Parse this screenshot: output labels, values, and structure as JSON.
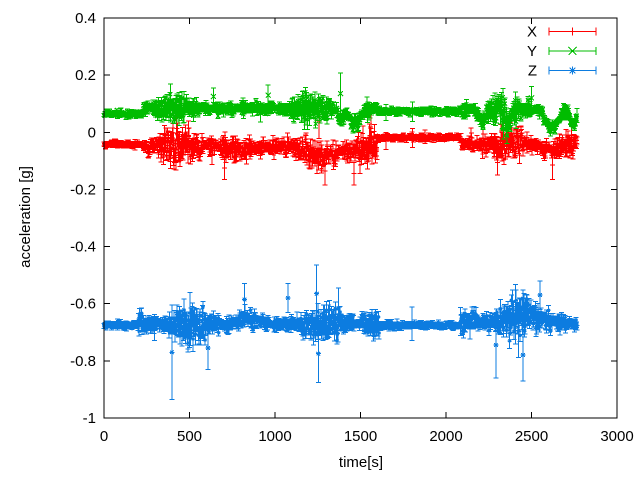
{
  "chart_data": {
    "type": "scatter",
    "style": "errorbars-with-points",
    "title": "",
    "xlabel": "time[s]",
    "ylabel": "acceleration [g]",
    "xlim": [
      0,
      3000
    ],
    "ylim": [
      -1,
      0.4
    ],
    "xticks": [
      0,
      500,
      1000,
      1500,
      2000,
      2500,
      3000
    ],
    "xtick_labels": [
      "0",
      "500",
      "1000",
      "1500",
      "2000",
      "2500",
      "3000"
    ],
    "yticks": [
      0.4,
      0.2,
      0,
      -0.2,
      -0.4,
      -0.6,
      -0.8,
      -1
    ],
    "ytick_labels": [
      "0.4",
      "0.2",
      "0",
      "-0.2",
      "-0.4",
      "-0.6",
      "-0.8",
      "-1"
    ],
    "grid": false,
    "background_color": "#ffffff",
    "axis_color": "#000000",
    "legend": {
      "position": "top-right-inside",
      "border": false,
      "entries": [
        "X",
        "Y",
        "Z"
      ]
    },
    "sampling": {
      "t_start": 0,
      "t_end": 2765,
      "step_s": 2.5
    },
    "series": [
      {
        "name": "X",
        "color": "#ff0000",
        "marker": "plus",
        "baseline": -0.04,
        "segments": [
          {
            "t0": 0,
            "t1": 230,
            "mean": -0.042,
            "noise": 0.005,
            "err": 0.007,
            "calm": true
          },
          {
            "t0": 230,
            "t1": 1600,
            "mean": -0.048,
            "noise": 0.028,
            "err": 0.03,
            "calm": false
          },
          {
            "t0": 1600,
            "t1": 2085,
            "mean": -0.018,
            "noise": 0.005,
            "err": 0.007,
            "calm": true
          },
          {
            "t0": 2085,
            "t1": 2765,
            "mean": -0.042,
            "noise": 0.024,
            "err": 0.026,
            "calm": false
          }
        ],
        "local_shifts": [
          {
            "t": 1300,
            "w": 130,
            "dy": -0.028
          },
          {
            "t": 800,
            "w": 60,
            "dy": -0.015
          },
          {
            "t": 2620,
            "w": 50,
            "dy": -0.02
          }
        ],
        "outliers": [
          {
            "t": 1258,
            "y": 0.04,
            "err": 0.062
          },
          {
            "t": 1292,
            "y": -0.135,
            "err": 0.05
          },
          {
            "t": 705,
            "y": -0.125,
            "err": 0.04
          },
          {
            "t": 1462,
            "y": -0.145,
            "err": 0.04
          },
          {
            "t": 1805,
            "y": -0.02,
            "err": 0.034
          },
          {
            "t": 1650,
            "y": -0.03,
            "err": 0.03
          },
          {
            "t": 2302,
            "y": -0.105,
            "err": 0.045
          },
          {
            "t": 2622,
            "y": -0.115,
            "err": 0.05
          }
        ]
      },
      {
        "name": "Y",
        "color": "#00bc00",
        "marker": "cross",
        "baseline": 0.08,
        "segments": [
          {
            "t0": 0,
            "t1": 230,
            "mean": 0.065,
            "noise": 0.005,
            "err": 0.007,
            "calm": true
          },
          {
            "t0": 230,
            "t1": 1600,
            "mean": 0.085,
            "noise": 0.02,
            "err": 0.026,
            "calm": false
          },
          {
            "t0": 1600,
            "t1": 2085,
            "mean": 0.073,
            "noise": 0.005,
            "err": 0.007,
            "calm": true
          },
          {
            "t0": 2085,
            "t1": 2765,
            "mean": 0.08,
            "noise": 0.022,
            "err": 0.024,
            "calm": false
          }
        ],
        "local_shifts": [
          {
            "t": 1470,
            "w": 30,
            "dy": -0.06
          },
          {
            "t": 1385,
            "w": 14,
            "dy": -0.045
          },
          {
            "t": 2620,
            "w": 35,
            "dy": -0.065
          },
          {
            "t": 2215,
            "w": 18,
            "dy": -0.045
          },
          {
            "t": 2365,
            "w": 18,
            "dy": -0.045
          },
          {
            "t": 2745,
            "w": 18,
            "dy": -0.055
          }
        ],
        "outliers": [
          {
            "t": 1383,
            "y": 0.135,
            "err": 0.072
          },
          {
            "t": 1805,
            "y": 0.072,
            "err": 0.034
          },
          {
            "t": 1650,
            "y": 0.07,
            "err": 0.028
          },
          {
            "t": 2500,
            "y": 0.12,
            "err": 0.04
          },
          {
            "t": 960,
            "y": 0.13,
            "err": 0.035
          },
          {
            "t": 640,
            "y": 0.125,
            "err": 0.03
          }
        ]
      },
      {
        "name": "Z",
        "color": "#0c7ce0",
        "marker": "asterisk",
        "baseline": -0.67,
        "segments": [
          {
            "t0": 0,
            "t1": 200,
            "mean": -0.675,
            "noise": 0.005,
            "err": 0.008,
            "calm": true
          },
          {
            "t0": 200,
            "t1": 1610,
            "mean": -0.672,
            "noise": 0.027,
            "err": 0.032,
            "calm": false
          },
          {
            "t0": 1610,
            "t1": 2085,
            "mean": -0.675,
            "noise": 0.005,
            "err": 0.008,
            "calm": true
          },
          {
            "t0": 2085,
            "t1": 2705,
            "mean": -0.665,
            "noise": 0.028,
            "err": 0.032,
            "calm": false
          },
          {
            "t0": 2705,
            "t1": 2765,
            "mean": -0.672,
            "noise": 0.008,
            "err": 0.01,
            "calm": true
          }
        ],
        "local_shifts": [
          {
            "t": 2480,
            "w": 70,
            "dy": 0.025
          },
          {
            "t": 850,
            "w": 60,
            "dy": 0.02
          }
        ],
        "outliers": [
          {
            "t": 397,
            "y": -0.77,
            "err": 0.165
          },
          {
            "t": 1243,
            "y": -0.565,
            "err": 0.1
          },
          {
            "t": 1253,
            "y": -0.775,
            "err": 0.1
          },
          {
            "t": 1800,
            "y": -0.67,
            "err": 0.058
          },
          {
            "t": 2292,
            "y": -0.745,
            "err": 0.115
          },
          {
            "t": 2450,
            "y": -0.78,
            "err": 0.09
          },
          {
            "t": 608,
            "y": -0.755,
            "err": 0.075
          },
          {
            "t": 822,
            "y": -0.585,
            "err": 0.055
          },
          {
            "t": 1075,
            "y": -0.58,
            "err": 0.05
          },
          {
            "t": 2550,
            "y": -0.57,
            "err": 0.05
          }
        ]
      }
    ]
  }
}
